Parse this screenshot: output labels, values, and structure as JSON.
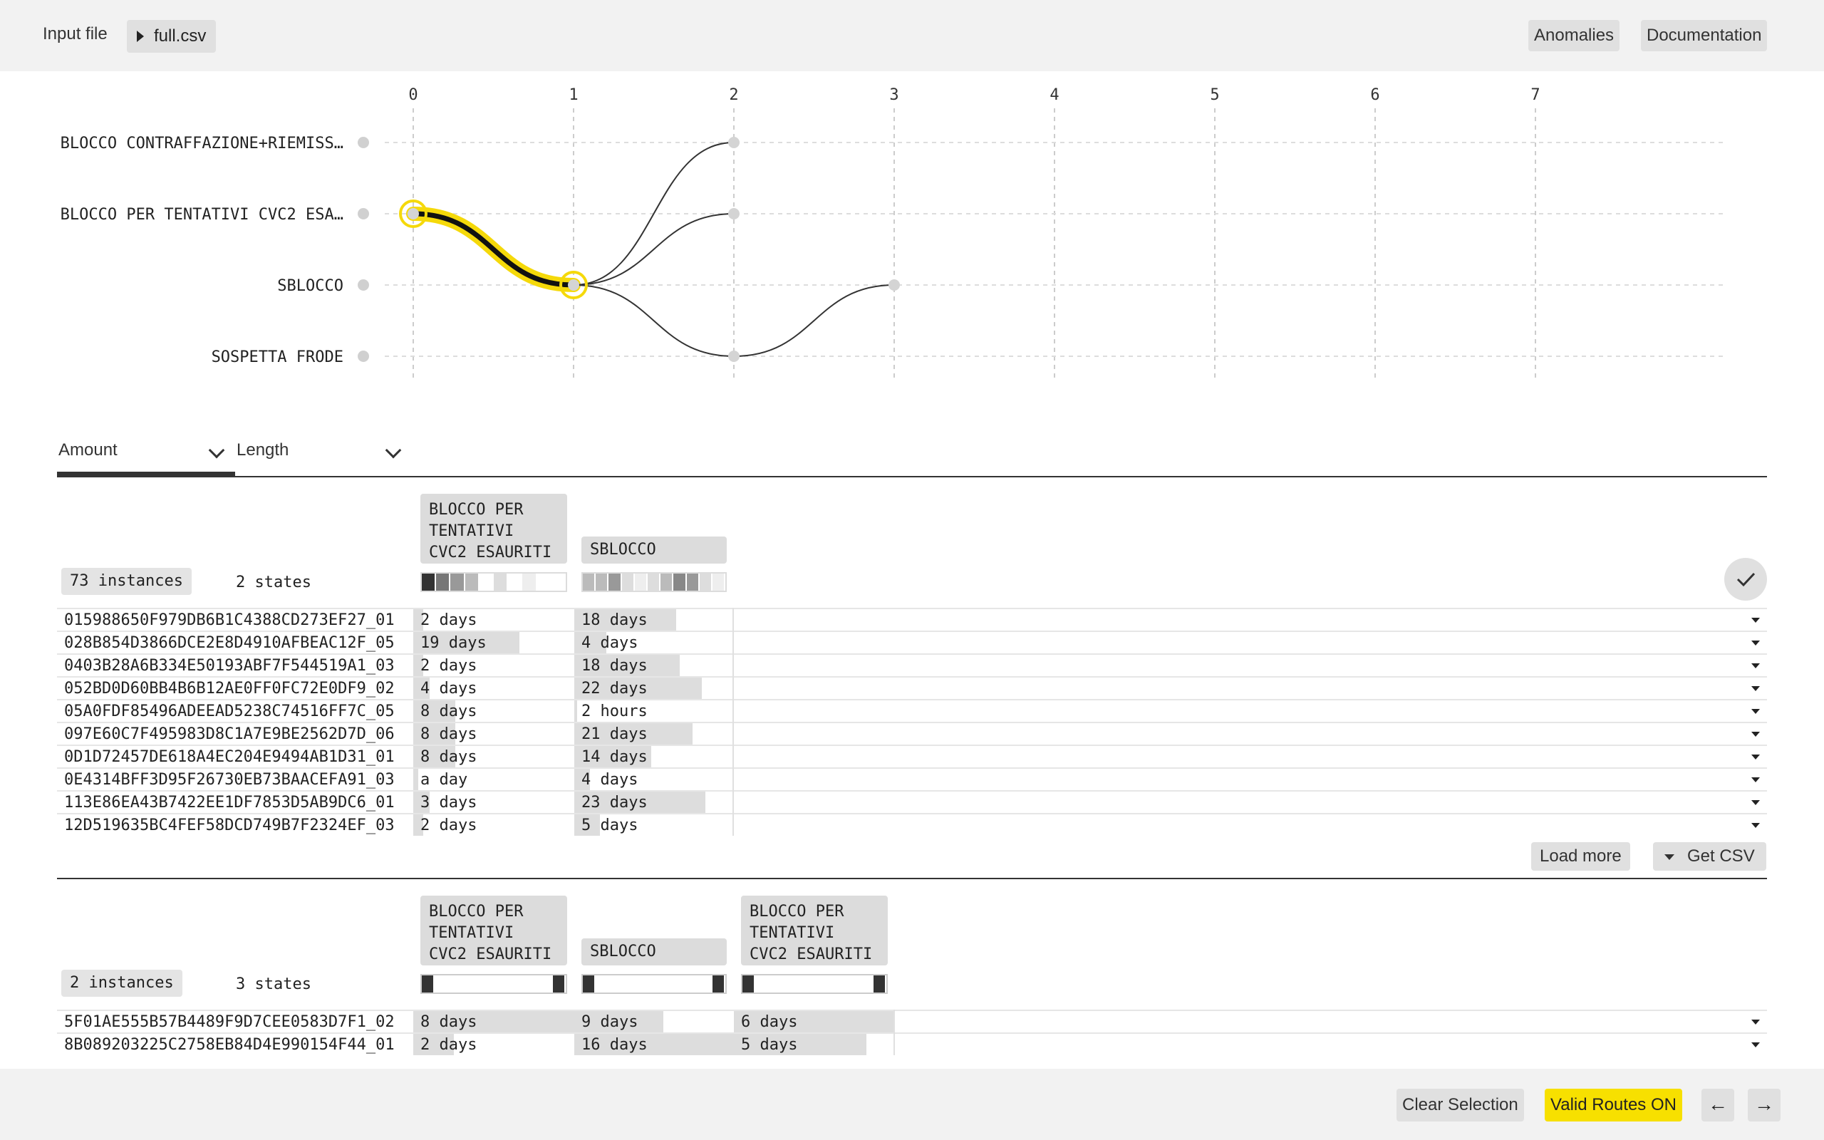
{
  "header": {
    "input_label": "Input file",
    "file_name": "full.csv",
    "anomalies_label": "Anomalies",
    "documentation_label": "Documentation"
  },
  "graph": {
    "columns": [
      "0",
      "1",
      "2",
      "3",
      "4",
      "5",
      "6",
      "7"
    ],
    "states": [
      "BLOCCO CONTRAFFAZIONE+RIEMISS…",
      "BLOCCO PER TENTATIVI CVC2 ESA…",
      "SBLOCCO",
      "SOSPETTA FRODE"
    ],
    "highlight_color": "#f5d90a",
    "selected_route": [
      [
        0,
        1
      ],
      [
        1,
        2
      ]
    ]
  },
  "tabs": {
    "amount_label": "Amount",
    "length_label": "Length"
  },
  "group1": {
    "instances": "73 instances",
    "states": "2 states",
    "headers": [
      "BLOCCO PER\nTENTATIVI\nCVC2 ESAURITI",
      "SBLOCCO"
    ],
    "rows": [
      {
        "id": "015988650F979DB6B1C4388CD273EF27_01",
        "d1": "2 days",
        "f1": 0.06,
        "d2": "18 days",
        "f2": 0.64
      },
      {
        "id": "028B854D3866DCE2E8D4910AFBEAC12F_05",
        "d1": "19 days",
        "f1": 0.66,
        "d2": "4 days",
        "f2": 0.2
      },
      {
        "id": "0403B28A6B334E50193ABF7F544519A1_03",
        "d1": "2 days",
        "f1": 0.06,
        "d2": "18 days",
        "f2": 0.66
      },
      {
        "id": "052BD0D60BB4B6B12AE0FF0FC72E0DF9_02",
        "d1": "4 days",
        "f1": 0.1,
        "d2": "22 days",
        "f2": 0.8
      },
      {
        "id": "05A0FDF85496ADEEAD5238C74516FF7C_05",
        "d1": "8 days",
        "f1": 0.26,
        "d2": "2 hours",
        "f2": 0.02
      },
      {
        "id": "097E60C7F495983D8C1A7E9BE2562D7D_06",
        "d1": "8 days",
        "f1": 0.26,
        "d2": "21 days",
        "f2": 0.74
      },
      {
        "id": "0D1D72457DE618A4EC204E9494AB1D31_01",
        "d1": "8 days",
        "f1": 0.26,
        "d2": "14 days",
        "f2": 0.48
      },
      {
        "id": "0E4314BFF3D95F26730EB73BAACEFA91_03",
        "d1": "a day",
        "f1": 0.03,
        "d2": "4 days",
        "f2": 0.1
      },
      {
        "id": "113E86EA43B7422EE1DF7853D5AB9DC6_01",
        "d1": "3 days",
        "f1": 0.1,
        "d2": "23 days",
        "f2": 0.82
      },
      {
        "id": "12D519635BC4FEF58DCD749B7F2324EF_03",
        "d1": "2 days",
        "f1": 0.06,
        "d2": "5 days",
        "f2": 0.16
      }
    ],
    "load_more_label": "Load more",
    "get_csv_label": "Get CSV"
  },
  "group2": {
    "instances": "2 instances",
    "states": "3 states",
    "headers": [
      "BLOCCO PER\nTENTATIVI\nCVC2 ESAURITI",
      "SBLOCCO",
      "BLOCCO PER\nTENTATIVI\nCVC2 ESAURITI"
    ],
    "rows": [
      {
        "id": "5F01AE555B57B4489F9D7CEE0583D7F1_02",
        "d1": "8 days",
        "f1": 1.0,
        "d2": "9 days",
        "f2": 0.56,
        "d3": "6 days",
        "f3": 1.0
      },
      {
        "id": "8B089203225C2758EB84D4E990154F44_01",
        "d1": "2 days",
        "f1": 0.25,
        "d2": "16 days",
        "f2": 1.0,
        "d3": "5 days",
        "f3": 0.83
      }
    ]
  },
  "footer": {
    "clear_label": "Clear Selection",
    "valid_routes_label": "Valid Routes ON",
    "valid_routes_color": "#f7e000",
    "prev_icon": "←",
    "next_icon": "→"
  }
}
